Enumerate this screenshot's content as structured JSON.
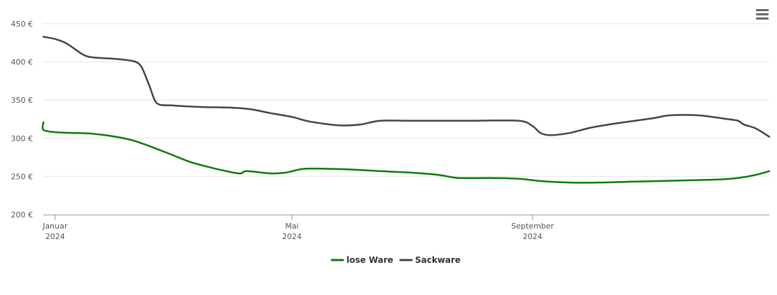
{
  "chart_data": {
    "type": "line",
    "title": "",
    "xlabel": "",
    "ylabel": "",
    "x_labels": [
      {
        "month": "Januar",
        "year": "2024",
        "date": "2024-01-01"
      },
      {
        "month": "Mai",
        "year": "2024",
        "date": "2024-05-01"
      },
      {
        "month": "September",
        "year": "2024",
        "date": "2024-09-01"
      }
    ],
    "y_ticks": [
      "200 €",
      "250 €",
      "300 €",
      "350 €",
      "400 €",
      "450 €"
    ],
    "ylim": [
      200,
      450
    ],
    "xlim": [
      "2023-12-26",
      "2024-12-31"
    ],
    "grid": "horizontal",
    "legend_position": "bottom-center",
    "series": [
      {
        "name": "lose Ware",
        "color": "#0a7a0a",
        "points": [
          [
            "2023-12-26",
            321
          ],
          [
            "2023-12-26",
            311
          ],
          [
            "2024-01-01",
            308
          ],
          [
            "2024-01-10",
            307
          ],
          [
            "2024-01-20",
            306
          ],
          [
            "2024-02-01",
            302
          ],
          [
            "2024-02-10",
            297
          ],
          [
            "2024-02-20",
            288
          ],
          [
            "2024-03-01",
            278
          ],
          [
            "2024-03-10",
            269
          ],
          [
            "2024-03-20",
            262
          ],
          [
            "2024-04-01",
            255
          ],
          [
            "2024-04-05",
            254
          ],
          [
            "2024-04-08",
            257
          ],
          [
            "2024-04-20",
            254
          ],
          [
            "2024-04-28",
            255
          ],
          [
            "2024-05-07",
            260
          ],
          [
            "2024-05-20",
            260
          ],
          [
            "2024-06-01",
            259
          ],
          [
            "2024-06-15",
            257
          ],
          [
            "2024-07-01",
            255
          ],
          [
            "2024-07-15",
            252
          ],
          [
            "2024-07-25",
            248
          ],
          [
            "2024-08-10",
            248
          ],
          [
            "2024-08-25",
            247
          ],
          [
            "2024-09-05",
            244
          ],
          [
            "2024-09-20",
            242
          ],
          [
            "2024-10-05",
            242
          ],
          [
            "2024-10-20",
            243
          ],
          [
            "2024-11-05",
            244
          ],
          [
            "2024-11-20",
            245
          ],
          [
            "2024-12-05",
            246
          ],
          [
            "2024-12-15",
            248
          ],
          [
            "2024-12-24",
            252
          ],
          [
            "2024-12-31",
            257
          ]
        ]
      },
      {
        "name": "Sackware",
        "color": "#434348",
        "points": [
          [
            "2023-12-26",
            433
          ],
          [
            "2024-01-01",
            430
          ],
          [
            "2024-01-07",
            424
          ],
          [
            "2024-01-15",
            410
          ],
          [
            "2024-01-20",
            406
          ],
          [
            "2024-02-01",
            404
          ],
          [
            "2024-02-10",
            401
          ],
          [
            "2024-02-14",
            394
          ],
          [
            "2024-02-18",
            370
          ],
          [
            "2024-02-22",
            346
          ],
          [
            "2024-03-01",
            343
          ],
          [
            "2024-03-15",
            341
          ],
          [
            "2024-04-01",
            340
          ],
          [
            "2024-04-10",
            338
          ],
          [
            "2024-04-20",
            333
          ],
          [
            "2024-05-01",
            328
          ],
          [
            "2024-05-10",
            322
          ],
          [
            "2024-05-25",
            317
          ],
          [
            "2024-06-05",
            318
          ],
          [
            "2024-06-15",
            323
          ],
          [
            "2024-07-01",
            323
          ],
          [
            "2024-08-01",
            323
          ],
          [
            "2024-08-25",
            323
          ],
          [
            "2024-09-01",
            316
          ],
          [
            "2024-09-05",
            307
          ],
          [
            "2024-09-10",
            304
          ],
          [
            "2024-09-20",
            307
          ],
          [
            "2024-10-01",
            314
          ],
          [
            "2024-10-15",
            320
          ],
          [
            "2024-11-01",
            326
          ],
          [
            "2024-11-10",
            330
          ],
          [
            "2024-11-25",
            330
          ],
          [
            "2024-12-10",
            325
          ],
          [
            "2024-12-15",
            323
          ],
          [
            "2024-12-18",
            318
          ],
          [
            "2024-12-24",
            313
          ],
          [
            "2024-12-31",
            302
          ]
        ]
      }
    ]
  },
  "ui": {
    "menu_icon": "hamburger-menu-icon"
  }
}
